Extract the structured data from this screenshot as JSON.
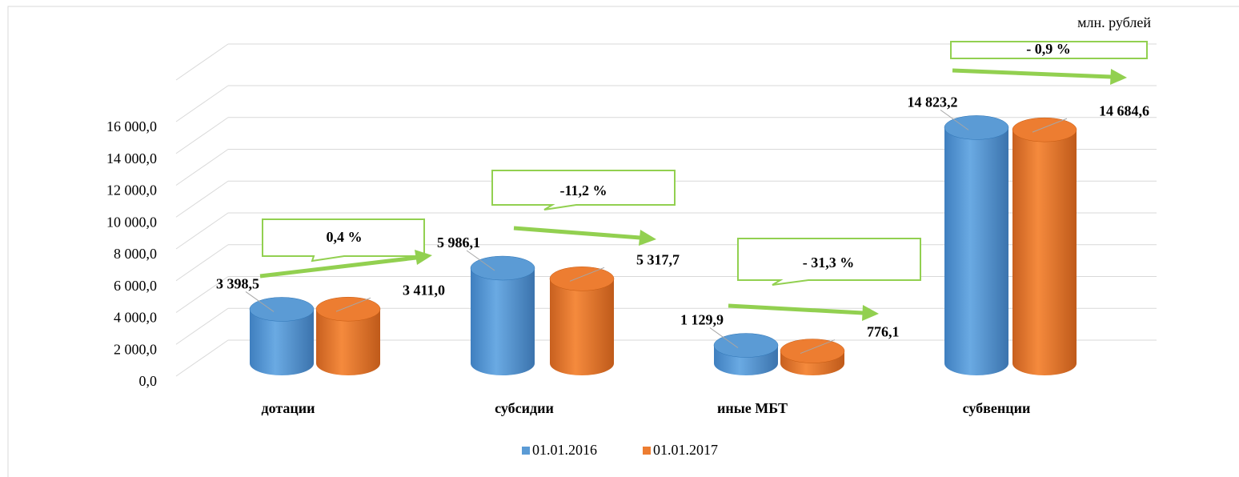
{
  "chart_data": {
    "type": "bar3d",
    "unit_label": "млн. рублей",
    "categories": [
      "дотации",
      "субсидии",
      "иные МБТ",
      "субвенции"
    ],
    "series": [
      {
        "name": "01.01.2016",
        "color": "#5b9bd5",
        "values": [
          3398.5,
          5986.1,
          1129.9,
          14823.2
        ],
        "value_labels": [
          "3 398,5",
          "5 986,1",
          "1 129,9",
          "14 823,2"
        ]
      },
      {
        "name": "01.01.2017",
        "color": "#ed7d31",
        "values": [
          3411.0,
          5317.7,
          776.1,
          14684.6
        ],
        "value_labels": [
          "3 411,0",
          "5 317,7",
          "776,1",
          "14 684,6"
        ]
      }
    ],
    "annotations": [
      "0,4 %",
      "-11,2 %",
      "- 31,3 %",
      "- 0,9 %"
    ],
    "ylim": [
      0,
      16000
    ],
    "yticks": [
      {
        "value": 0,
        "label": "0,0"
      },
      {
        "value": 2000,
        "label": "2 000,0"
      },
      {
        "value": 4000,
        "label": "4 000,0"
      },
      {
        "value": 6000,
        "label": "6 000,0"
      },
      {
        "value": 8000,
        "label": "8 000,0"
      },
      {
        "value": 10000,
        "label": "10 000,0"
      },
      {
        "value": 12000,
        "label": "12 000,0"
      },
      {
        "value": 14000,
        "label": "14 000,0"
      },
      {
        "value": 16000,
        "label": "16 000,0"
      }
    ],
    "grid": true,
    "legend": "bottom"
  }
}
